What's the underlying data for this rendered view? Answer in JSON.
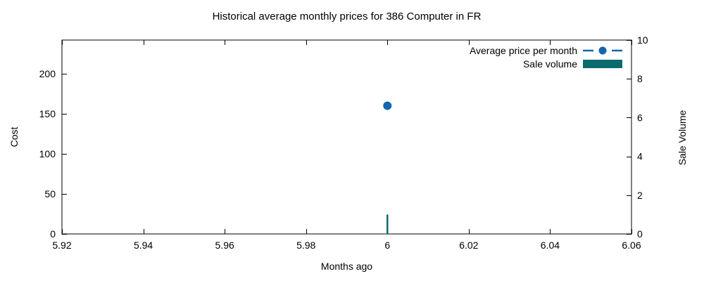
{
  "figure": {
    "background": "#ffffff",
    "axis_color": "#000000",
    "text_color": "#000000"
  },
  "chart_data": {
    "type": "line",
    "title": "Historical average monthly prices for 386 Computer in FR",
    "xlabel": "Months ago",
    "ylabel_left": "Cost",
    "ylabel_right": "Sale Volume",
    "xlim": [
      5.92,
      6.06
    ],
    "ylim_left": [
      0,
      242
    ],
    "ylim_right": [
      0,
      10
    ],
    "x_ticks": [
      5.92,
      5.94,
      5.96,
      5.98,
      6,
      6.02,
      6.04,
      6.06
    ],
    "x_tick_labels": [
      "5.92",
      "5.94",
      "5.96",
      "5.98",
      "6",
      "6.02",
      "6.04",
      "6.06"
    ],
    "y_ticks_left": [
      0,
      50,
      100,
      150,
      200
    ],
    "y_tick_labels_left": [
      "0",
      "50",
      "100",
      "150",
      "200"
    ],
    "y_ticks_right": [
      0,
      2,
      4,
      6,
      8,
      10
    ],
    "y_tick_labels_right": [
      "0",
      "2",
      "4",
      "6",
      "8",
      "10"
    ],
    "grid": false,
    "ticks_direction": "in",
    "ticks_mirrored": true,
    "legend_position": "top-right-inside",
    "series": [
      {
        "name": "Average price per month",
        "type": "line",
        "marker": "circle",
        "line_style": "dashed",
        "color": "#1565b0",
        "axis": "left",
        "x": [
          6
        ],
        "y": [
          160
        ]
      },
      {
        "name": "Sale volume",
        "type": "bar",
        "color": "#0b6a6d",
        "axis": "right",
        "x": [
          6
        ],
        "y": [
          1
        ]
      }
    ]
  }
}
